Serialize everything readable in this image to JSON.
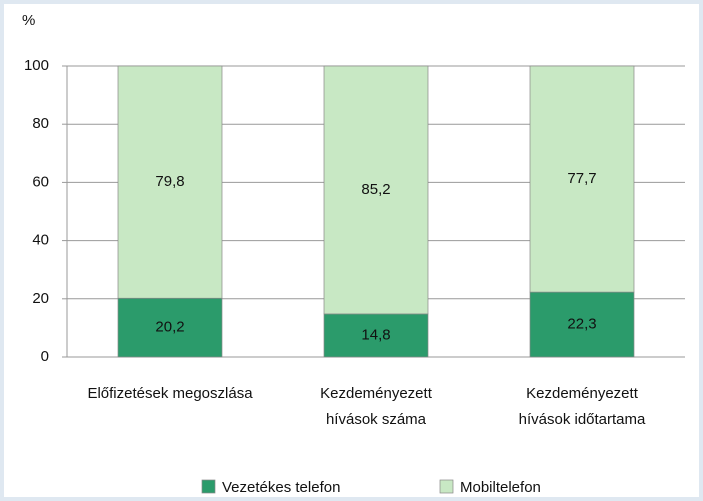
{
  "chart_data": {
    "type": "stacked_bar",
    "y_label": "%",
    "categories": [
      "Előfizetések megoszlása",
      "Kezdeményezett hívások száma",
      "Kezdeményezett hívások időtartama"
    ],
    "series": [
      {
        "name": "Vezetékes telefon",
        "color": "#2b9b6b",
        "values": [
          20.2,
          14.8,
          22.3
        ],
        "value_labels": [
          "20,2",
          "14,8",
          "22,3"
        ]
      },
      {
        "name": "Mobiltelefon",
        "color": "#c8e8c4",
        "values": [
          79.8,
          85.2,
          77.7
        ],
        "value_labels": [
          "79,8",
          "85,2",
          "77,7"
        ]
      }
    ],
    "ylim": [
      0,
      100
    ],
    "yticks": [
      0,
      20,
      40,
      60,
      80,
      100
    ],
    "grid": true
  }
}
